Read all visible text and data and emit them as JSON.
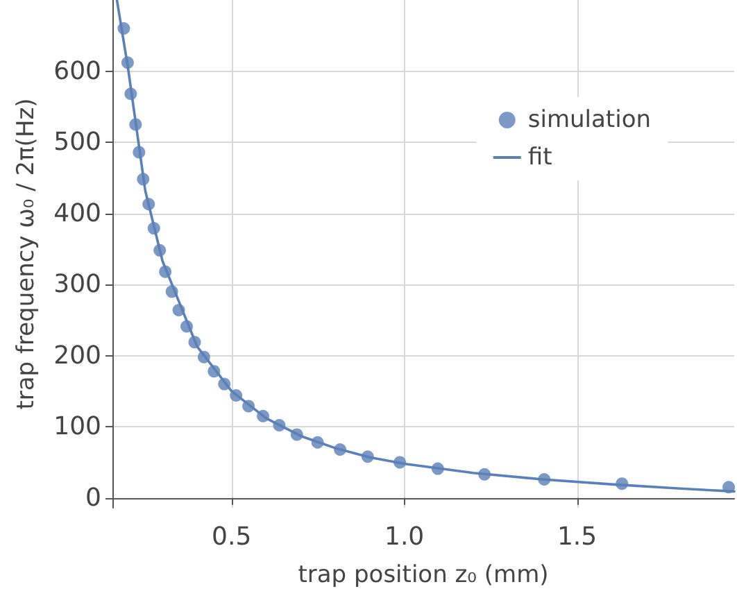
{
  "chart_data": {
    "type": "scatter",
    "xlabel": "trap position z₀ (mm)",
    "ylabel": "trap frequency ω₀ / 2π(Hz)",
    "xlim": [
      0.155,
      1.955
    ],
    "ylim": [
      -14,
      700
    ],
    "xticks": [
      0.5,
      {
        "value": 1,
        "label": "1.0"
      },
      1.5
    ],
    "yticks": [
      0,
      100,
      200,
      300,
      400,
      500,
      600
    ],
    "grid": true,
    "legend": "top right",
    "series": [
      {
        "name": "simulation",
        "marker": "circle",
        "color": "#5b7fb8",
        "x": [
          0.188,
          0.199,
          0.208,
          0.222,
          0.232,
          0.244,
          0.26,
          0.275,
          0.292,
          0.308,
          0.327,
          0.347,
          0.37,
          0.393,
          0.42,
          0.449,
          0.479,
          0.513,
          0.549,
          0.591,
          0.638,
          0.689,
          0.749,
          0.814,
          0.894,
          0.987,
          1.097,
          1.232,
          1.405,
          1.63,
          1.939
        ],
        "values": [
          660,
          612,
          568,
          525,
          486,
          448,
          413,
          379,
          348,
          318,
          290,
          264,
          241,
          219,
          198,
          178,
          160,
          144,
          129,
          115,
          102,
          89,
          78,
          68,
          58,
          50,
          41,
          33,
          26,
          20,
          15
        ]
      },
      {
        "name": "fit",
        "type": "line",
        "marker": "none",
        "line_style": "solid",
        "color": "#5b7fb8",
        "x": [
          0.168,
          0.2,
          0.25,
          0.3,
          0.4,
          0.5,
          0.6,
          0.7,
          0.8,
          0.9,
          1.0,
          1.2,
          1.4,
          1.6,
          1.8,
          1.955
        ],
        "values": [
          700,
          605,
          432,
          333,
          213,
          150,
          112,
          87,
          70,
          57,
          48,
          35,
          26,
          19,
          13,
          9
        ]
      }
    ]
  }
}
